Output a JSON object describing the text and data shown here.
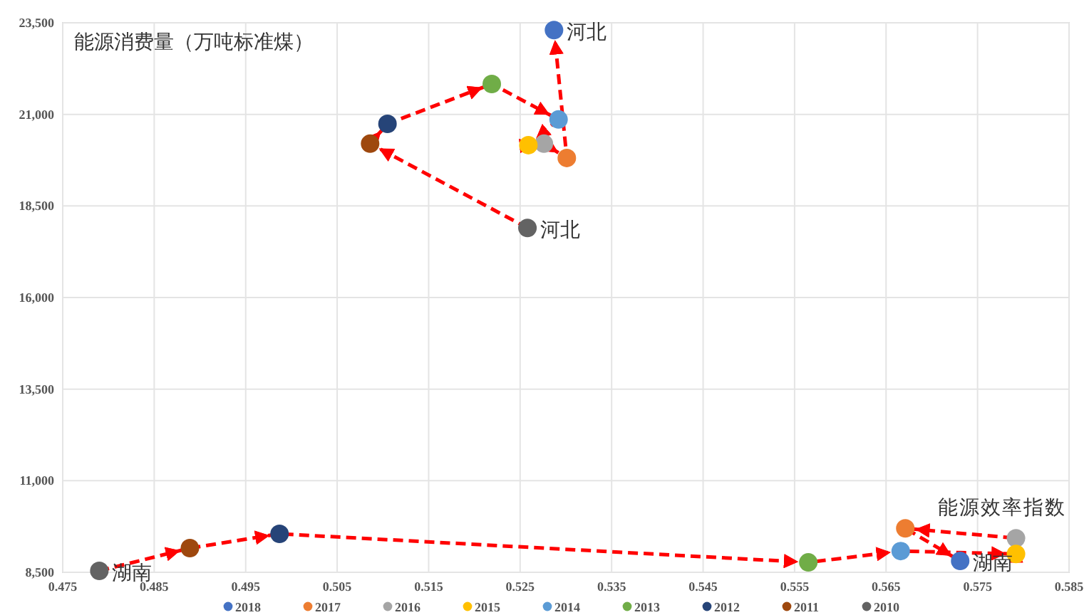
{
  "chart_data": {
    "type": "scatter",
    "ylabel": "能源消费量（万吨标准煤）",
    "xlabel": "能源效率指数",
    "xlim": [
      0.475,
      0.585
    ],
    "xticks": [
      0.475,
      0.485,
      0.495,
      0.505,
      0.515,
      0.525,
      0.535,
      0.545,
      0.555,
      0.565,
      0.575,
      0.585
    ],
    "ylim": [
      8500,
      23500
    ],
    "yticks": [
      {
        "value": 8500,
        "label": "8,500"
      },
      {
        "value": 11000,
        "label": "11,000"
      },
      {
        "value": 13500,
        "label": "13,500"
      },
      {
        "value": 16000,
        "label": "16,000"
      },
      {
        "value": 18500,
        "label": "18,500"
      },
      {
        "value": 21000,
        "label": "21,000"
      },
      {
        "value": 23500,
        "label": "23,500"
      }
    ],
    "grid": true,
    "legend": "bottom",
    "marker": "circle",
    "series": [
      {
        "type": "line",
        "color": "#ff0000",
        "line_style": "dashed",
        "marker": "none",
        "x": [
          0.5258,
          0.5086,
          0.5105,
          0.5219,
          0.5292,
          0.5259,
          0.5276,
          0.5301,
          0.5287
        ],
        "values": [
          17900,
          20200,
          20740,
          21830,
          20860,
          20160,
          20200,
          19810,
          23300
        ]
      },
      {
        "type": "line",
        "color": "#ff0000",
        "line_style": "dashed",
        "marker": "none",
        "x": [
          0.479,
          0.4889,
          0.4987,
          0.5565,
          0.5666,
          0.5792,
          0.5792,
          0.5671,
          0.5731
        ],
        "values": [
          8540,
          9160,
          9550,
          8770,
          9080,
          9000,
          9430,
          9700,
          8810
        ]
      },
      {
        "name": "2018",
        "color": "#4472c4",
        "x": [
          0.5287,
          0.5731
        ],
        "values": [
          23300,
          8810
        ]
      },
      {
        "name": "2017",
        "color": "#ed7d31",
        "x": [
          0.5301,
          0.5671
        ],
        "values": [
          19810,
          9700
        ]
      },
      {
        "name": "2016",
        "color": "#a5a5a5",
        "x": [
          0.5276,
          0.5792
        ],
        "values": [
          20200,
          9430
        ]
      },
      {
        "name": "2015",
        "color": "#ffc000",
        "x": [
          0.5259,
          0.5792
        ],
        "values": [
          20160,
          9000
        ]
      },
      {
        "name": "2014",
        "color": "#5b9bd5",
        "x": [
          0.5292,
          0.5666
        ],
        "values": [
          20860,
          9080
        ]
      },
      {
        "name": "2013",
        "color": "#70ad47",
        "x": [
          0.5219,
          0.5565
        ],
        "values": [
          21830,
          8770
        ]
      },
      {
        "name": "2012",
        "color": "#264478",
        "x": [
          0.5105,
          0.4987
        ],
        "values": [
          20740,
          9550
        ]
      },
      {
        "name": "2011",
        "color": "#9e480e",
        "x": [
          0.5086,
          0.4889
        ],
        "values": [
          20200,
          9160
        ]
      },
      {
        "name": "2010",
        "color": "#636363",
        "x": [
          0.5258,
          0.479
        ],
        "values": [
          17900,
          8540
        ]
      }
    ],
    "annotations": [
      {
        "text": "河北",
        "x": 0.5287,
        "y": 23300
      },
      {
        "text": "河北",
        "x": 0.5258,
        "y": 17900
      },
      {
        "text": "湖南",
        "x": 0.479,
        "y": 8540
      },
      {
        "text": "湖南",
        "x": 0.5731,
        "y": 8810
      }
    ]
  }
}
